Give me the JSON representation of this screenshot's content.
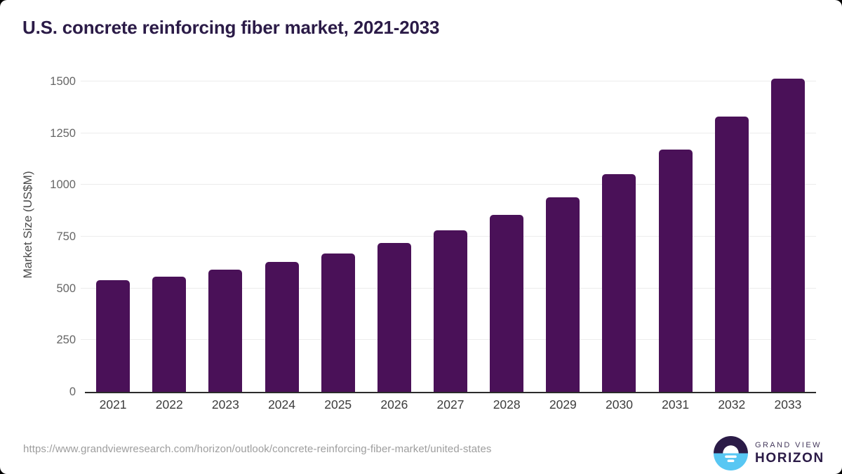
{
  "page": {
    "background": "#000000",
    "card_background": "#ffffff"
  },
  "chart_data": {
    "type": "bar",
    "title": "U.S. concrete reinforcing fiber market, 2021-2033",
    "title_color": "#2b1b47",
    "categories": [
      "2021",
      "2022",
      "2023",
      "2024",
      "2025",
      "2026",
      "2027",
      "2028",
      "2029",
      "2030",
      "2031",
      "2032",
      "2033"
    ],
    "values": [
      539,
      557,
      590,
      627,
      667,
      719,
      780,
      856,
      941,
      1053,
      1172,
      1329,
      1512
    ],
    "xlabel": "",
    "ylabel": "Market Size (US$M)",
    "ylim": [
      0,
      1500
    ],
    "yticks": [
      0,
      250,
      500,
      750,
      1000,
      1250,
      1500
    ],
    "grid": true,
    "legend": false,
    "bar_color": "#4a1158",
    "gridline_color": "#ececec",
    "axis_line_color": "#2b2b2b"
  },
  "footer": {
    "source_url": "https://www.grandviewresearch.com/horizon/outlook/concrete-reinforcing-fiber-market/united-states",
    "logo": {
      "line1": "GRAND VIEW",
      "line2": "HORIZON",
      "icon": "horizon-sun-icon",
      "icon_purple": "#2b1b47",
      "icon_blue": "#58c7f3"
    }
  }
}
